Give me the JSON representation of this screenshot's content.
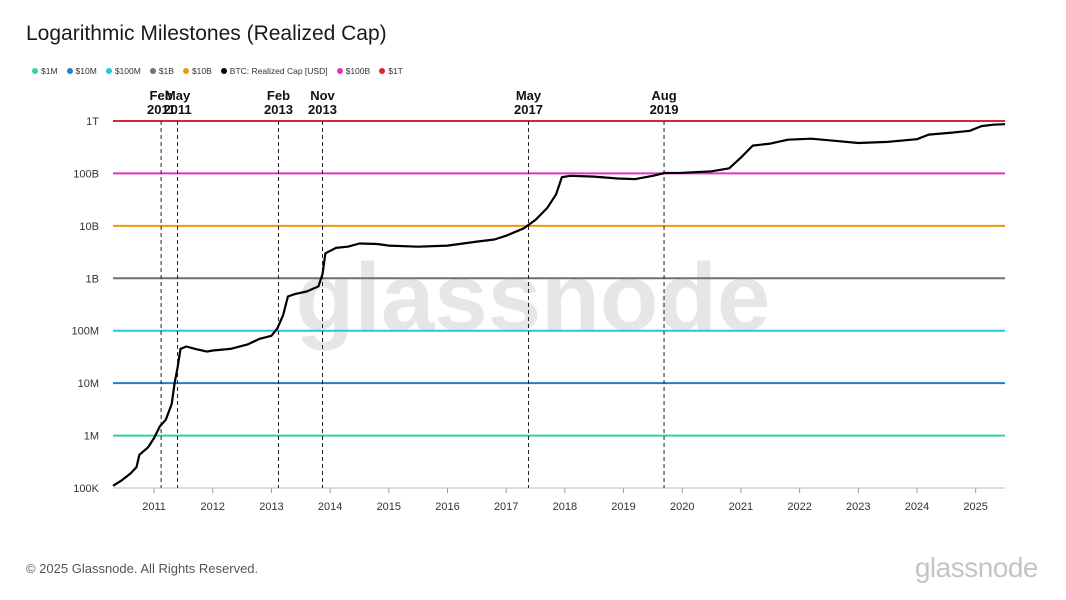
{
  "title": "Logarithmic Milestones (Realized Cap)",
  "footer": "© 2025 Glassnode. All Rights Reserved.",
  "brand": "glassnode",
  "watermark": "glassnode",
  "legend": [
    {
      "label": "$1M",
      "color": "#2ed3a0"
    },
    {
      "label": "$10M",
      "color": "#1f7fcf"
    },
    {
      "label": "$100M",
      "color": "#23c8e0"
    },
    {
      "label": "$1B",
      "color": "#707070"
    },
    {
      "label": "$10B",
      "color": "#f0960e"
    },
    {
      "label": "BTC: Realized Cap [USD]",
      "color": "#000000"
    },
    {
      "label": "$100B",
      "color": "#e332c6"
    },
    {
      "label": "$1T",
      "color": "#d42a2a"
    }
  ],
  "chart_data": {
    "type": "line",
    "title": "Logarithmic Milestones (Realized Cap)",
    "yscale": "log",
    "ylim": [
      100000,
      1000000000000
    ],
    "xlim": [
      2010.3,
      2025.5
    ],
    "y_ticks": [
      {
        "value": 100000,
        "label": "100K"
      },
      {
        "value": 1000000,
        "label": "1M"
      },
      {
        "value": 10000000,
        "label": "10M"
      },
      {
        "value": 100000000,
        "label": "100M"
      },
      {
        "value": 1000000000,
        "label": "1B"
      },
      {
        "value": 10000000000,
        "label": "10B"
      },
      {
        "value": 100000000000,
        "label": "100B"
      },
      {
        "value": 1000000000000,
        "label": "1T"
      }
    ],
    "x_ticks": [
      "2011",
      "2012",
      "2013",
      "2014",
      "2015",
      "2016",
      "2017",
      "2018",
      "2019",
      "2020",
      "2021",
      "2022",
      "2023",
      "2024",
      "2025"
    ],
    "milestones": [
      {
        "name": "$1M",
        "value": 1000000,
        "color": "#2ed3a0"
      },
      {
        "name": "$10M",
        "value": 10000000,
        "color": "#1f7fcf"
      },
      {
        "name": "$100M",
        "value": 100000000,
        "color": "#23c8e0"
      },
      {
        "name": "$1B",
        "value": 1000000000,
        "color": "#707070"
      },
      {
        "name": "$10B",
        "value": 10000000000,
        "color": "#f0960e"
      },
      {
        "name": "$100B",
        "value": 100000000000,
        "color": "#e332c6"
      },
      {
        "name": "$1T",
        "value": 1000000000000,
        "color": "#d42a2a"
      }
    ],
    "events": [
      {
        "month": "Feb",
        "year": "2011",
        "x": 2011.12
      },
      {
        "month": "May",
        "year": "2011",
        "x": 2011.4
      },
      {
        "month": "Feb",
        "year": "2013",
        "x": 2013.12
      },
      {
        "month": "Nov",
        "year": "2013",
        "x": 2013.87
      },
      {
        "month": "May",
        "year": "2017",
        "x": 2017.38
      },
      {
        "month": "Aug",
        "year": "2019",
        "x": 2019.69
      }
    ],
    "series": [
      {
        "name": "BTC: Realized Cap [USD]",
        "color": "#000000",
        "points": [
          [
            2010.3,
            110000
          ],
          [
            2010.45,
            140000
          ],
          [
            2010.6,
            190000
          ],
          [
            2010.7,
            250000
          ],
          [
            2010.75,
            430000
          ],
          [
            2010.9,
            600000
          ],
          [
            2011.0,
            900000
          ],
          [
            2011.1,
            1500000
          ],
          [
            2011.2,
            2000000
          ],
          [
            2011.3,
            4000000
          ],
          [
            2011.35,
            10000000
          ],
          [
            2011.4,
            20000000
          ],
          [
            2011.45,
            45000000
          ],
          [
            2011.55,
            50000000
          ],
          [
            2011.7,
            45000000
          ],
          [
            2011.9,
            40000000
          ],
          [
            2012.0,
            42000000
          ],
          [
            2012.3,
            45000000
          ],
          [
            2012.6,
            55000000
          ],
          [
            2012.8,
            70000000
          ],
          [
            2013.0,
            80000000
          ],
          [
            2013.1,
            110000000
          ],
          [
            2013.2,
            200000000
          ],
          [
            2013.28,
            450000000
          ],
          [
            2013.4,
            500000000
          ],
          [
            2013.6,
            560000000
          ],
          [
            2013.8,
            700000000
          ],
          [
            2013.87,
            1200000000
          ],
          [
            2013.92,
            3000000000
          ],
          [
            2014.1,
            3800000000
          ],
          [
            2014.3,
            4000000000
          ],
          [
            2014.5,
            4600000000
          ],
          [
            2014.8,
            4500000000
          ],
          [
            2015.0,
            4200000000
          ],
          [
            2015.5,
            4000000000
          ],
          [
            2016.0,
            4200000000
          ],
          [
            2016.5,
            5000000000
          ],
          [
            2016.8,
            5500000000
          ],
          [
            2017.0,
            6500000000
          ],
          [
            2017.3,
            9000000000
          ],
          [
            2017.5,
            13000000000
          ],
          [
            2017.7,
            22000000000
          ],
          [
            2017.85,
            40000000000
          ],
          [
            2017.95,
            85000000000
          ],
          [
            2018.1,
            90000000000
          ],
          [
            2018.5,
            87000000000
          ],
          [
            2018.9,
            80000000000
          ],
          [
            2019.2,
            78000000000
          ],
          [
            2019.5,
            90000000000
          ],
          [
            2019.7,
            102000000000
          ],
          [
            2020.0,
            103000000000
          ],
          [
            2020.5,
            110000000000
          ],
          [
            2020.8,
            125000000000
          ],
          [
            2021.0,
            200000000000
          ],
          [
            2021.2,
            340000000000
          ],
          [
            2021.5,
            370000000000
          ],
          [
            2021.8,
            440000000000
          ],
          [
            2022.2,
            460000000000
          ],
          [
            2022.6,
            420000000000
          ],
          [
            2023.0,
            380000000000
          ],
          [
            2023.5,
            400000000000
          ],
          [
            2024.0,
            450000000000
          ],
          [
            2024.2,
            550000000000
          ],
          [
            2024.6,
            600000000000
          ],
          [
            2024.9,
            650000000000
          ],
          [
            2025.1,
            800000000000
          ],
          [
            2025.3,
            850000000000
          ],
          [
            2025.5,
            870000000000
          ]
        ]
      }
    ]
  }
}
